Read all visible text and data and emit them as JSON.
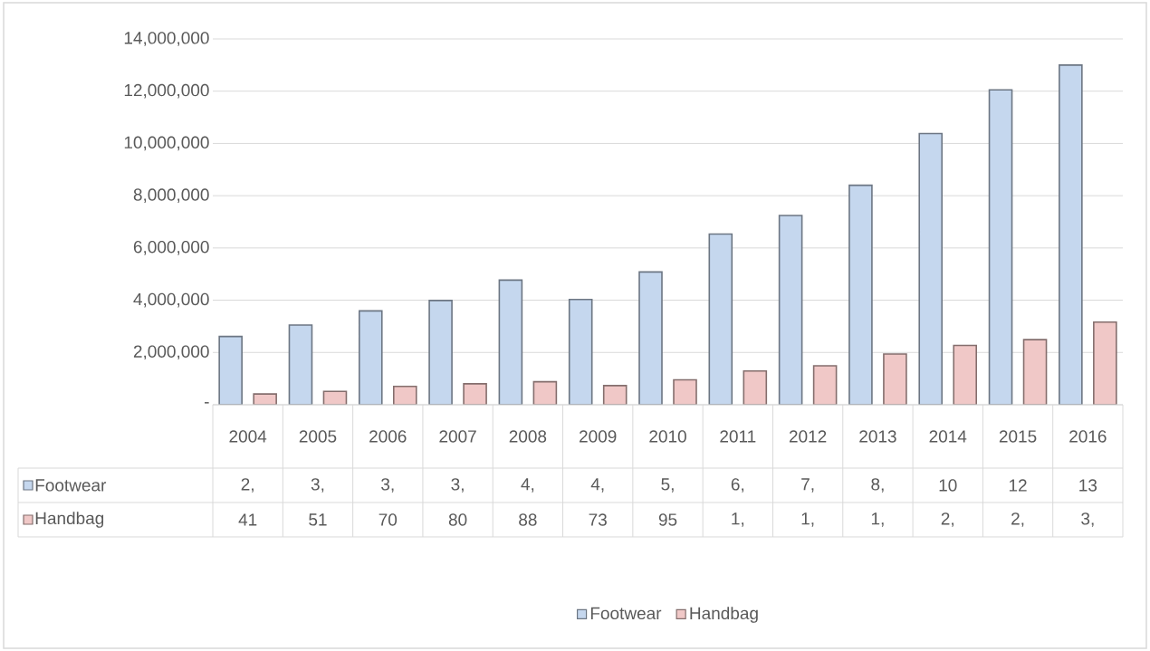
{
  "chart_data": {
    "type": "bar",
    "categories": [
      "2004",
      "2005",
      "2006",
      "2007",
      "2008",
      "2009",
      "2010",
      "2011",
      "2012",
      "2013",
      "2014",
      "2015",
      "2016"
    ],
    "series": [
      {
        "name": "Footwear",
        "color": "#c5d7ee",
        "values": [
          2610000,
          3050000,
          3590000,
          3990000,
          4770000,
          4030000,
          5080000,
          6530000,
          7240000,
          8400000,
          10380000,
          12050000,
          13000000
        ]
      },
      {
        "name": "Handbag",
        "color": "#f0c8c7",
        "values": [
          410000,
          510000,
          700000,
          800000,
          880000,
          730000,
          950000,
          1290000,
          1490000,
          1940000,
          2270000,
          2490000,
          3160000
        ]
      }
    ],
    "annotations": [
      "2,",
      "3,",
      "3,",
      "3,",
      "4,",
      "4,",
      "5,",
      "6,",
      "7,",
      "8,",
      "10",
      "12",
      "13",
      "41",
      "51",
      "70",
      "80",
      "88",
      "73",
      "95",
      "1,",
      "1,",
      "1,",
      "2,",
      "2,",
      "3,"
    ],
    "ylim": [
      0,
      14000000
    ],
    "yticks": [
      {
        "value": 0,
        "label": "-"
      },
      {
        "value": 2000000,
        "label": "2,000,000"
      },
      {
        "value": 4000000,
        "label": "4,000,000"
      },
      {
        "value": 6000000,
        "label": "6,000,000"
      },
      {
        "value": 8000000,
        "label": "8,000,000"
      },
      {
        "value": 10000000,
        "label": "10,000,000"
      },
      {
        "value": 12000000,
        "label": "12,000,000"
      },
      {
        "value": 14000000,
        "label": "14,000,000"
      }
    ],
    "grid": "y",
    "legend": "bottom"
  }
}
